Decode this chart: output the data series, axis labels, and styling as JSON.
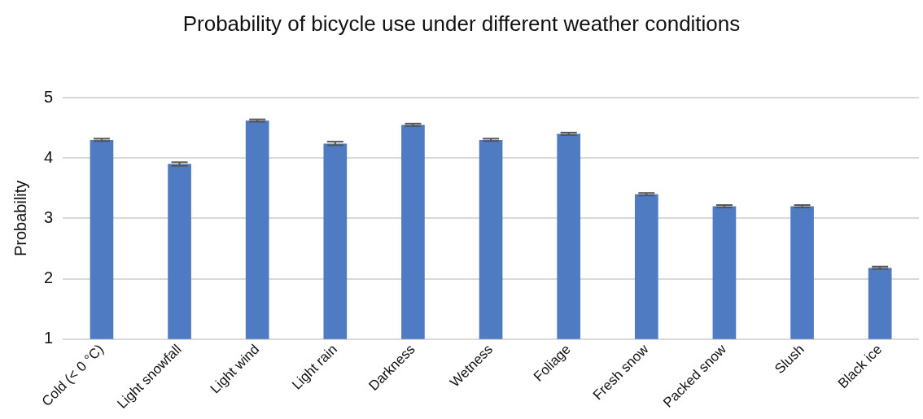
{
  "chart_data": {
    "type": "bar",
    "title": "Probability of bicycle use under different weather conditions",
    "ylabel": "Probability",
    "categories": [
      "Cold (< 0 °C)",
      "Light snowfall",
      "Light wind",
      "Light rain",
      "Darkness",
      "Wetness",
      "Foliage",
      "Fresh snow",
      "Packed snow",
      "Slush",
      "Black ice"
    ],
    "values": [
      4.3,
      3.9,
      4.62,
      4.24,
      4.55,
      4.3,
      4.4,
      3.4,
      3.2,
      3.2,
      2.18
    ],
    "errors": [
      0.02,
      0.03,
      0.02,
      0.03,
      0.02,
      0.02,
      0.02,
      0.02,
      0.02,
      0.02,
      0.02
    ],
    "color": "#4f7bc3",
    "ylim": [
      1,
      5
    ],
    "yticks": [
      1,
      2,
      3,
      4,
      5
    ],
    "grid": "y"
  }
}
